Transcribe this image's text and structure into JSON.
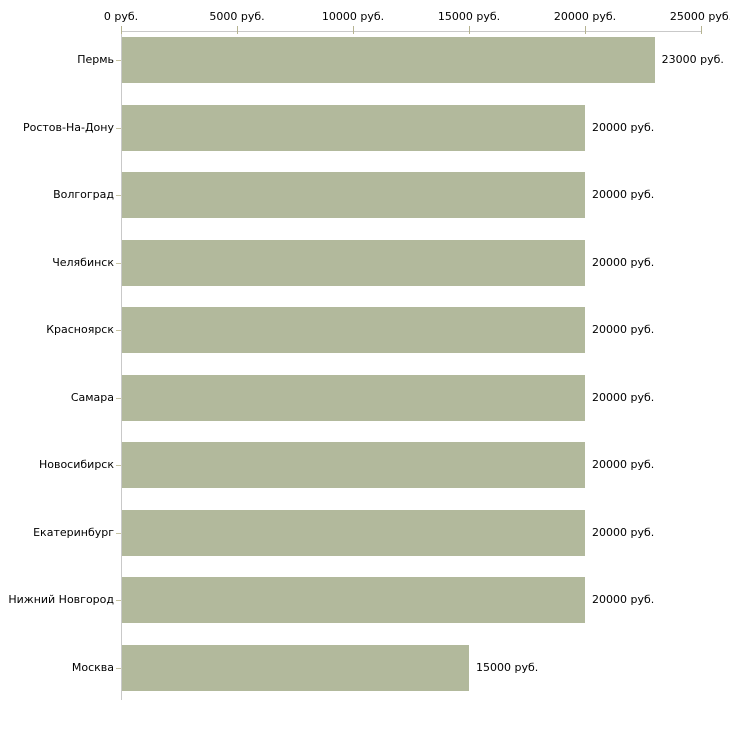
{
  "chart_data": {
    "type": "bar",
    "orientation": "horizontal",
    "title": "",
    "xlabel": "",
    "ylabel": "",
    "unit": "руб.",
    "categories": [
      "Пермь",
      "Ростов-На-Дону",
      "Волгоград",
      "Челябинск",
      "Красноярск",
      "Самара",
      "Новосибирск",
      "Екатеринбург",
      "Нижний Новгород",
      "Москва"
    ],
    "values": [
      23000,
      20000,
      20000,
      20000,
      20000,
      20000,
      20000,
      20000,
      20000,
      15000
    ],
    "value_labels": [
      "23000 руб.",
      "20000 руб.",
      "20000 руб.",
      "20000 руб.",
      "20000 руб.",
      "20000 руб.",
      "20000 руб.",
      "20000 руб.",
      "20000 руб.",
      "15000 руб."
    ],
    "xlim": [
      0,
      25000
    ],
    "x_axis_position": "top",
    "grid": false,
    "legend": "none",
    "x_ticks": {
      "values": [
        0,
        5000,
        10000,
        15000,
        20000,
        25000
      ],
      "labels": [
        "0 руб.",
        "5000 руб.",
        "10000 руб.",
        "15000 руб.",
        "20000 руб.",
        "25000 руб."
      ]
    },
    "colors": {
      "bar_fill": "#b2b99c",
      "axis_line": "#c9c9c9",
      "tick_mark": "#b5b391",
      "row_tick": "#c6c3a2",
      "text": "#000000",
      "background": "#ffffff"
    }
  }
}
